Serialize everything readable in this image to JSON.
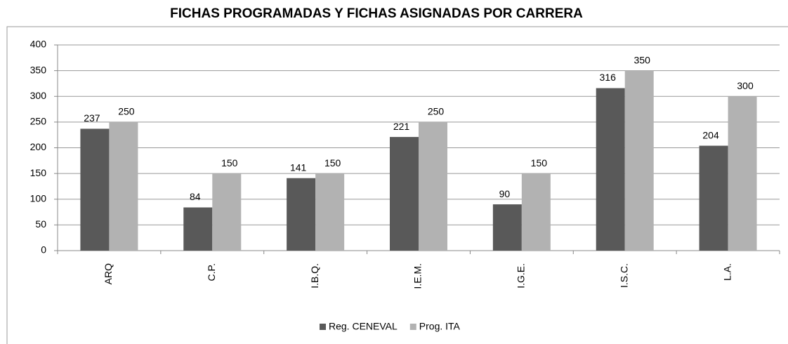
{
  "chart_data": {
    "type": "bar",
    "title": "FICHAS PROGRAMADAS Y FICHAS ASIGNADAS POR CARRERA",
    "categories": [
      "ARQ",
      "C.P.",
      "I.B.Q.",
      "I.E.M.",
      "I.G.E.",
      "I.S.C.",
      "L.A."
    ],
    "series": [
      {
        "name": "Reg. CENEVAL",
        "color": "#595959",
        "values": [
          237,
          84,
          141,
          221,
          90,
          316,
          204
        ]
      },
      {
        "name": "Prog. ITA",
        "color": "#b2b2b2",
        "values": [
          250,
          150,
          150,
          250,
          150,
          350,
          300
        ]
      }
    ],
    "ylim": [
      0,
      400
    ],
    "yticks": [
      0,
      50,
      100,
      150,
      200,
      250,
      300,
      350,
      400
    ],
    "grid": true,
    "legend": "bottom"
  }
}
